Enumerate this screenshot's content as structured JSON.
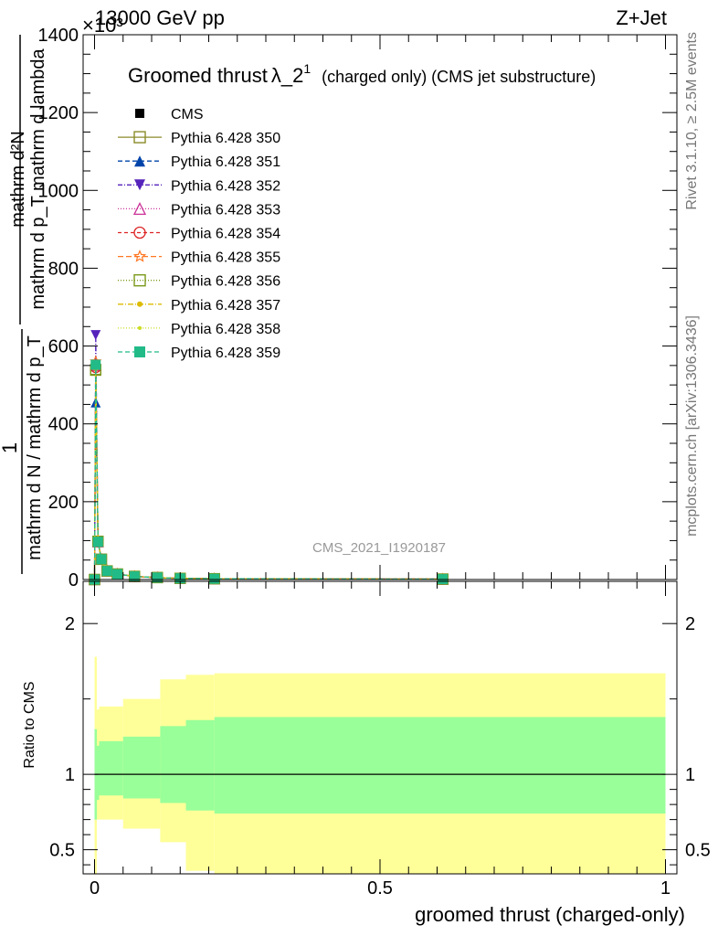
{
  "header": {
    "energy_label": "13000 GeV pp",
    "process_label": "Z+Jet",
    "exponent_label": "×10³"
  },
  "side_labels": {
    "rivet": "Rivet 3.1.10, ≥ 2.5M events",
    "mcplots": "mcplots.cern.ch [arXiv:1306.3436]"
  },
  "chart_data": [
    {
      "type": "line",
      "title": "Groomed thrust λ_2¹ (charged only) (CMS jet substructure)",
      "title_parts": {
        "main": "Groomed thrust",
        "lambda": "λ_2",
        "sup": "1",
        "rest": "(charged only) (CMS jet substructure)"
      },
      "ylabel_top": "mathrm d²N",
      "ylabel_main": "mathrm d p_T mathrm d lambda",
      "ylabel_one": "1",
      "ylabel_bottom": "mathrm d N / mathrm d p_T",
      "watermark": "CMS_2021_I1920187",
      "ylim": [
        0,
        1400
      ],
      "y_ticks": [
        0,
        200,
        400,
        600,
        800,
        1000,
        1200,
        1400
      ],
      "y_tick_labels": [
        "0",
        "200",
        "400",
        "600",
        "800",
        "1000",
        "1200",
        "1400"
      ],
      "xlim": [
        -0.02,
        1.02
      ],
      "legend_position": "top-left",
      "data_x": [
        0.0,
        0.002,
        0.006,
        0.012,
        0.022,
        0.04,
        0.07,
        0.11,
        0.15,
        0.21,
        0.61
      ],
      "series": [
        {
          "name": "CMS",
          "color": "#000000",
          "marker": "square-filled",
          "dash": "",
          "values": [
            1,
            548,
            97,
            52,
            22,
            14,
            8,
            4,
            3,
            2,
            0.5
          ]
        },
        {
          "name": "Pythia 6.428 350",
          "color": "#8b8b2a",
          "marker": "square-open",
          "dash": "",
          "values": [
            0,
            540,
            98,
            52,
            22,
            14,
            8,
            5,
            3,
            2,
            1
          ]
        },
        {
          "name": "Pythia 6.428 351",
          "color": "#0044aa",
          "marker": "triangle-up",
          "dash": "5,3",
          "values": [
            0,
            455,
            96,
            51,
            22,
            14,
            8,
            5,
            3,
            2,
            1
          ]
        },
        {
          "name": "Pythia 6.428 352",
          "color": "#5522bb",
          "marker": "triangle-down",
          "dash": "5,2,1,2",
          "values": [
            0,
            628,
            99,
            53,
            23,
            14,
            8,
            5,
            3,
            2,
            1
          ]
        },
        {
          "name": "Pythia 6.428 353",
          "color": "#cc3399",
          "marker": "triangle-open",
          "dash": "1,2",
          "values": [
            0,
            550,
            97,
            52,
            22,
            14,
            8,
            5,
            3,
            2,
            1
          ]
        },
        {
          "name": "Pythia 6.428 354",
          "color": "#dd2222",
          "marker": "circle-open",
          "dash": "4,3",
          "values": [
            0,
            545,
            97,
            52,
            22,
            14,
            8,
            5,
            3,
            2,
            1
          ]
        },
        {
          "name": "Pythia 6.428 355",
          "color": "#ff7722",
          "marker": "star",
          "dash": "6,3",
          "values": [
            0,
            560,
            97,
            52,
            22,
            14,
            8,
            5,
            3,
            2,
            1
          ]
        },
        {
          "name": "Pythia 6.428 356",
          "color": "#7a9a1a",
          "marker": "square-open",
          "dash": "1,2",
          "values": [
            0,
            538,
            98,
            52,
            22,
            14,
            8,
            5,
            3,
            2,
            1
          ]
        },
        {
          "name": "Pythia 6.428 357",
          "color": "#ddbb00",
          "marker": "dot",
          "dash": "6,2,1,2",
          "values": [
            0,
            542,
            97,
            52,
            22,
            14,
            8,
            5,
            3,
            2,
            1
          ]
        },
        {
          "name": "Pythia 6.428 358",
          "color": "#ccdd22",
          "marker": "dot-small",
          "dash": "1,2",
          "values": [
            0,
            546,
            97,
            52,
            22,
            14,
            8,
            5,
            3,
            2,
            1
          ]
        },
        {
          "name": "Pythia 6.428 359",
          "color": "#22bb88",
          "marker": "square-filled",
          "dash": "5,3",
          "values": [
            0,
            552,
            97,
            52,
            22,
            14,
            8,
            5,
            3,
            2,
            1
          ]
        }
      ]
    },
    {
      "type": "area",
      "ylabel": "Ratio to CMS",
      "xlabel": "groomed thrust (charged-only)",
      "ylim": [
        0.34,
        2.28
      ],
      "y_ticks": [
        0.5,
        1,
        2
      ],
      "y_tick_labels": [
        "0.5",
        "1",
        "2"
      ],
      "xlim": [
        -0.02,
        1.02
      ],
      "x_ticks": [
        0,
        0.5,
        1
      ],
      "x_tick_labels": [
        "0",
        "0.5",
        "1"
      ],
      "reference": 1,
      "bins": [
        0.0,
        0.004,
        0.008,
        0.05,
        0.115,
        0.16,
        0.21,
        1.0
      ],
      "band_outer": {
        "color": "#ffff99",
        "lo": [
          0.34,
          0.7,
          0.7,
          0.64,
          0.55,
          0.36,
          0.34
        ],
        "hi": [
          1.78,
          1.43,
          1.45,
          1.5,
          1.63,
          1.66,
          1.67
        ]
      },
      "band_inner": {
        "color": "#99ff99",
        "lo": [
          0.7,
          0.83,
          0.86,
          0.84,
          0.81,
          0.76,
          0.74
        ],
        "hi": [
          1.3,
          1.19,
          1.22,
          1.25,
          1.32,
          1.36,
          1.38
        ]
      }
    }
  ]
}
